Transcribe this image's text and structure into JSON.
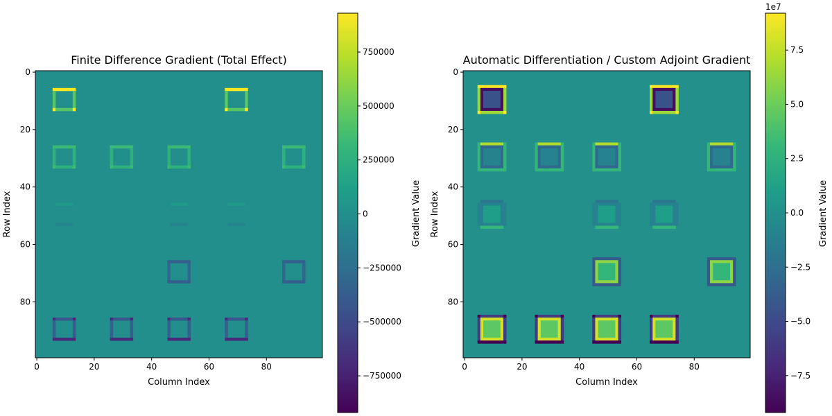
{
  "colormap": "viridis",
  "colormap_stops": [
    "#440154",
    "#482878",
    "#3e4989",
    "#31688e",
    "#26828e",
    "#1f9e89",
    "#35b779",
    "#6ece58",
    "#b5de2b",
    "#fde725"
  ],
  "chart_data": [
    {
      "type": "heatmap",
      "title": "Finite Difference Gradient (Total Effect)",
      "xlabel": "Column Index",
      "ylabel": "Row Index",
      "xlim": [
        0,
        99
      ],
      "ylim": [
        99,
        0
      ],
      "xticks": [
        0,
        20,
        40,
        60,
        80
      ],
      "yticks": [
        0,
        20,
        40,
        60,
        80
      ],
      "colorbar": {
        "label": "Gradient Value",
        "range": [
          -920000,
          930000
        ],
        "ticks": [
          -750000,
          -500000,
          -250000,
          0,
          250000,
          500000,
          750000
        ],
        "tick_labels": [
          "−750000",
          "−500000",
          "−250000",
          "0",
          "250000",
          "500000",
          "750000"
        ],
        "offset_text": ""
      },
      "square_size": 8,
      "patterns": {
        "s1": {
          "top": 930000,
          "sides": 440000,
          "bottom": 440000,
          "corner": 930000,
          "inner": 0
        },
        "s2": {
          "top": 340000,
          "sides": 260000,
          "bottom": 260000,
          "corner": 340000,
          "inner": 0
        },
        "s3": {
          "top": 80000,
          "sides": 0,
          "bottom": -80000,
          "corner": 0,
          "inner": 0
        },
        "s4": {
          "top": -360000,
          "sides": -300000,
          "bottom": -360000,
          "corner": -360000,
          "inner": 0
        },
        "s5": {
          "top": -420000,
          "sides": -360000,
          "bottom": -700000,
          "corner": -700000,
          "inner": 0
        }
      },
      "squares": [
        {
          "row": 10,
          "col": 10,
          "pattern": "s1"
        },
        {
          "row": 10,
          "col": 70,
          "pattern": "s1"
        },
        {
          "row": 30,
          "col": 10,
          "pattern": "s2"
        },
        {
          "row": 30,
          "col": 30,
          "pattern": "s2"
        },
        {
          "row": 30,
          "col": 50,
          "pattern": "s2"
        },
        {
          "row": 30,
          "col": 90,
          "pattern": "s2"
        },
        {
          "row": 50,
          "col": 10,
          "pattern": "s3"
        },
        {
          "row": 50,
          "col": 50,
          "pattern": "s3"
        },
        {
          "row": 50,
          "col": 70,
          "pattern": "s3"
        },
        {
          "row": 70,
          "col": 50,
          "pattern": "s4"
        },
        {
          "row": 70,
          "col": 90,
          "pattern": "s4"
        },
        {
          "row": 90,
          "col": 10,
          "pattern": "s5"
        },
        {
          "row": 90,
          "col": 30,
          "pattern": "s5"
        },
        {
          "row": 90,
          "col": 50,
          "pattern": "s5"
        },
        {
          "row": 90,
          "col": 70,
          "pattern": "s5"
        }
      ]
    },
    {
      "type": "heatmap",
      "title": "Automatic Differentiation / Custom Adjoint Gradient",
      "xlabel": "Column Index",
      "ylabel": "Row Index",
      "xlim": [
        0,
        99
      ],
      "ylim": [
        99,
        0
      ],
      "xticks": [
        0,
        20,
        40,
        60,
        80
      ],
      "yticks": [
        0,
        20,
        40,
        60,
        80
      ],
      "colorbar": {
        "label": "Gradient Value",
        "range": [
          -9.2,
          9.2
        ],
        "ticks": [
          -7.5,
          -5.0,
          -2.5,
          0.0,
          2.5,
          5.0,
          7.5
        ],
        "tick_labels": [
          "−7.5",
          "−5.0",
          "−2.5",
          "0.0",
          "2.5",
          "5.0",
          "7.5"
        ],
        "offset_text": "1e7"
      },
      "square_size": 10,
      "patterns": {
        "a1": {
          "top": 9.2,
          "sides": 6.5,
          "bottom": 6.5,
          "corner": 9.2,
          "inner": -4.5,
          "ring2": -8.5
        },
        "a2": {
          "top": 7.0,
          "sides": 3.0,
          "bottom": 3.0,
          "corner": 3.0,
          "inner": -1.0,
          "ring2": -3.0
        },
        "a3": {
          "top": -2.0,
          "sides": -1.0,
          "bottom": 3.0,
          "corner": 0,
          "inner": 1.0,
          "ring2": -1.0
        },
        "a4": {
          "top": -4.0,
          "sides": -4.0,
          "bottom": -4.0,
          "corner": -4.0,
          "inner": 3.0,
          "ring2": 6.0
        },
        "a5": {
          "top": -6.0,
          "sides": -6.0,
          "bottom": -9.2,
          "corner": -9.2,
          "inner": 4.5,
          "ring2": 8.0
        }
      },
      "squares": [
        {
          "row": 10,
          "col": 10,
          "pattern": "a1"
        },
        {
          "row": 10,
          "col": 70,
          "pattern": "a1"
        },
        {
          "row": 30,
          "col": 10,
          "pattern": "a2"
        },
        {
          "row": 30,
          "col": 30,
          "pattern": "a2"
        },
        {
          "row": 30,
          "col": 50,
          "pattern": "a2"
        },
        {
          "row": 30,
          "col": 90,
          "pattern": "a2"
        },
        {
          "row": 50,
          "col": 10,
          "pattern": "a3"
        },
        {
          "row": 50,
          "col": 50,
          "pattern": "a3"
        },
        {
          "row": 50,
          "col": 70,
          "pattern": "a3"
        },
        {
          "row": 70,
          "col": 50,
          "pattern": "a4"
        },
        {
          "row": 70,
          "col": 90,
          "pattern": "a4"
        },
        {
          "row": 90,
          "col": 10,
          "pattern": "a5"
        },
        {
          "row": 90,
          "col": 30,
          "pattern": "a5"
        },
        {
          "row": 90,
          "col": 50,
          "pattern": "a5"
        },
        {
          "row": 90,
          "col": 70,
          "pattern": "a5"
        }
      ]
    }
  ]
}
